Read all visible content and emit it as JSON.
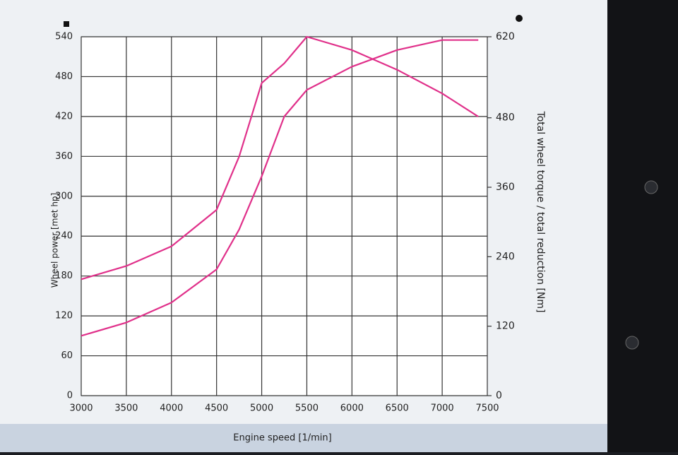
{
  "chart_data": {
    "type": "line",
    "x_label": "Engine speed [1/min]",
    "y_label": "Wheel power [met hp]",
    "y2_label": "Total wheel torque / total reduction [Nm]",
    "x": [
      3000,
      3500,
      4000,
      4500,
      4750,
      5000,
      5250,
      5500,
      6000,
      6500,
      7000,
      7400
    ],
    "series": [
      {
        "name": "Wheel power",
        "color": "#e0308a",
        "values": [
          90,
          110,
          140,
          190,
          250,
          330,
          420,
          460,
          495,
          520,
          535,
          535
        ]
      },
      {
        "name": "Wheel torque",
        "color": "#e0308a",
        "axis": "y2",
        "values": [
          201,
          224,
          258,
          321,
          413,
          540,
          574,
          620,
          597,
          563,
          522,
          482
        ]
      }
    ],
    "xlim": [
      3000,
      7500
    ],
    "xticks": [
      3000,
      3500,
      4000,
      4500,
      5000,
      5500,
      6000,
      6500,
      7000,
      7500
    ],
    "ylim": [
      0,
      540
    ],
    "yticks": [
      0,
      60,
      120,
      180,
      240,
      300,
      360,
      420,
      480,
      540
    ],
    "y2lim": [
      0,
      620
    ],
    "y2ticks": [
      0,
      120,
      240,
      360,
      480,
      620
    ],
    "grid": true
  }
}
